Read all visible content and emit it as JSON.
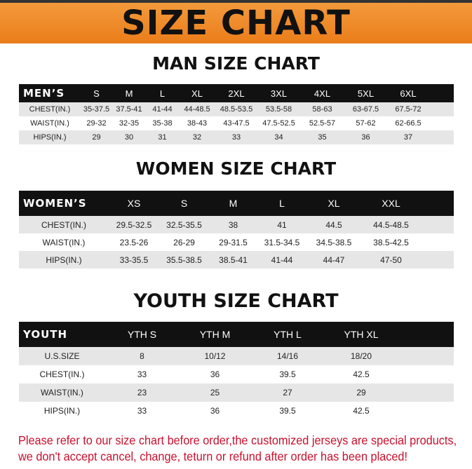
{
  "banner": "SIZE CHART",
  "men": {
    "title": "MAN SIZE CHART",
    "header": [
      "MEN’S",
      "S",
      "M",
      "L",
      "XL",
      "2XL",
      "3XL",
      "4XL",
      "5XL",
      "6XL",
      ""
    ],
    "rows": [
      [
        "CHEST(IN.)",
        "35-37.5",
        "37.5-41",
        "41-44",
        "44-48.5",
        "48.5-53.5",
        "53.5-58",
        "58-63",
        "63-67.5",
        "67.5-72",
        ""
      ],
      [
        "WAIST(IN.)",
        "29-32",
        "32-35",
        "35-38",
        "38-43",
        "43-47.5",
        "47.5-52.5",
        "52.5-57",
        "57-62",
        "62-66.5",
        ""
      ],
      [
        "HIPS(IN.)",
        "29",
        "30",
        "31",
        "32",
        "33",
        "34",
        "35",
        "36",
        "37",
        ""
      ]
    ]
  },
  "women": {
    "title": "WOMEN SIZE CHART",
    "header": [
      "WOMEN’S",
      "XS",
      "S",
      "M",
      "L",
      "XL",
      "XXL",
      ""
    ],
    "rows": [
      [
        "CHEST(IN.)",
        "29.5-32.5",
        "32.5-35.5",
        "38",
        "41",
        "44.5",
        "44.5-48.5",
        ""
      ],
      [
        "WAIST(IN.)",
        "23.5-26",
        "26-29",
        "29-31.5",
        "31.5-34.5",
        "34.5-38.5",
        "38.5-42.5",
        ""
      ],
      [
        "HIPS(IN.)",
        "33-35.5",
        "35.5-38.5",
        "38.5-41",
        "41-44",
        "44-47",
        "47-50",
        ""
      ]
    ]
  },
  "youth": {
    "title": "YOUTH SIZE CHART",
    "header": [
      "YOUTH",
      "YTH S",
      "YTH M",
      "YTH L",
      "YTH XL",
      ""
    ],
    "rows": [
      [
        "U.S.SIZE",
        "8",
        "10/12",
        "14/16",
        "18/20",
        ""
      ],
      [
        "CHEST(IN.)",
        "33",
        "36",
        "39.5",
        "42.5",
        ""
      ],
      [
        "WAIST(IN.)",
        "23",
        "25",
        "27",
        "29",
        ""
      ],
      [
        "HIPS(IN.)",
        "33",
        "36",
        "39.5",
        "42.5",
        ""
      ]
    ]
  },
  "note": [
    "Please refer to our size chart before order,the customized jerseys are special products,",
    "we don't accept cancel, change, teturn or refund after order has been placed!"
  ]
}
